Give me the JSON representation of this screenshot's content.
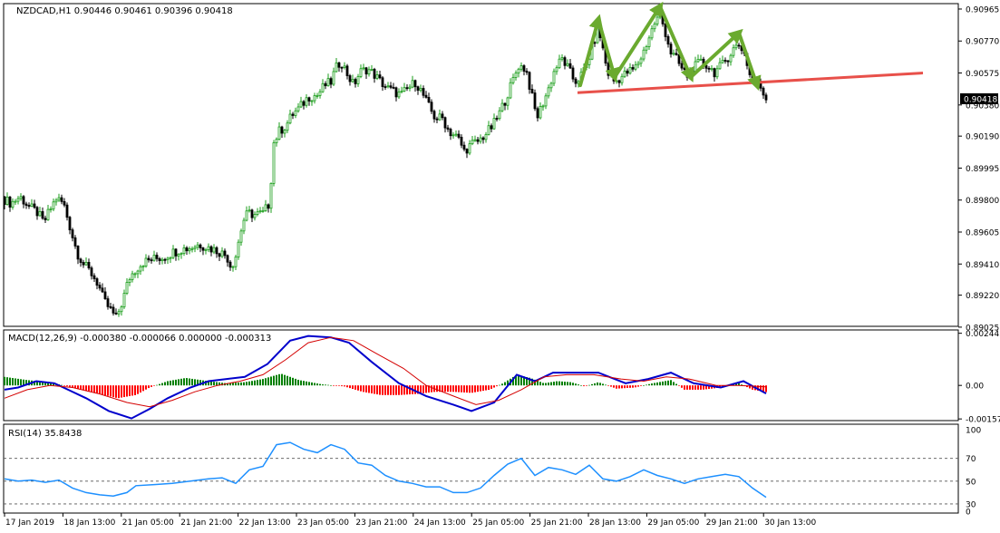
{
  "colors": {
    "bull": "#1b9e1b",
    "bear": "#000000",
    "macd": "#0000cc",
    "signal": "#d40000",
    "hist_pos": "#008000",
    "hist_neg": "#ff0000",
    "rsi": "#1e90ff",
    "neckline": "#e8504a",
    "pattern": "#6aaa2f",
    "frame": "#000000"
  },
  "chart_data": [
    {
      "type": "candlestick",
      "title": "NZDCAD,H1  0.90446 0.90461 0.90396 0.90418",
      "symbol_label": "NZDCAD,H1",
      "ohlc_label": "0.90446 0.90461 0.90396 0.90418",
      "ylim": [
        0.8903,
        0.90998
      ],
      "y_ticks": [
        "0.90965",
        "0.90770",
        "0.90575",
        "0.90380",
        "0.90190",
        "0.89995",
        "0.89800",
        "0.89605",
        "0.89410",
        "0.89220",
        "0.89025"
      ],
      "last_price": "0.90418",
      "x_ticks": [
        "17 Jan 2019",
        "18 Jan 13:00",
        "21 Jan 05:00",
        "21 Jan 21:00",
        "22 Jan 13:00",
        "23 Jan 05:00",
        "23 Jan 21:00",
        "24 Jan 13:00",
        "25 Jan 05:00",
        "25 Jan 21:00",
        "28 Jan 13:00",
        "29 Jan 05:00",
        "29 Jan 21:00",
        "30 Jan 13:00"
      ],
      "close_path": [
        [
          0,
          0.8982
        ],
        [
          12,
          0.8978
        ],
        [
          22,
          0.8982
        ],
        [
          32,
          0.8976
        ],
        [
          42,
          0.8972
        ],
        [
          48,
          0.8966
        ],
        [
          55,
          0.8974
        ],
        [
          62,
          0.8981
        ],
        [
          70,
          0.8978
        ],
        [
          78,
          0.8962
        ],
        [
          85,
          0.8948
        ],
        [
          92,
          0.8941
        ],
        [
          100,
          0.8936
        ],
        [
          108,
          0.8929
        ],
        [
          115,
          0.8918
        ],
        [
          122,
          0.8913
        ],
        [
          128,
          0.8908
        ],
        [
          135,
          0.8918
        ],
        [
          142,
          0.8932
        ],
        [
          150,
          0.8938
        ],
        [
          158,
          0.8942
        ],
        [
          168,
          0.8944
        ],
        [
          180,
          0.8945
        ],
        [
          190,
          0.8948
        ],
        [
          200,
          0.895
        ],
        [
          210,
          0.8951
        ],
        [
          220,
          0.8953
        ],
        [
          230,
          0.8951
        ],
        [
          240,
          0.8949
        ],
        [
          250,
          0.8946
        ],
        [
          255,
          0.8939
        ],
        [
          260,
          0.8946
        ],
        [
          265,
          0.896
        ],
        [
          270,
          0.897
        ],
        [
          275,
          0.8972
        ],
        [
          280,
          0.8971
        ],
        [
          290,
          0.8972
        ],
        [
          297,
          0.8978
        ],
        [
          302,
          0.9015
        ],
        [
          308,
          0.9022
        ],
        [
          315,
          0.9025
        ],
        [
          322,
          0.9032
        ],
        [
          330,
          0.9036
        ],
        [
          340,
          0.9043
        ],
        [
          350,
          0.9044
        ],
        [
          358,
          0.905
        ],
        [
          365,
          0.9052
        ],
        [
          370,
          0.906
        ],
        [
          376,
          0.9065
        ],
        [
          382,
          0.9058
        ],
        [
          390,
          0.905
        ],
        [
          397,
          0.9058
        ],
        [
          405,
          0.906
        ],
        [
          412,
          0.9057
        ],
        [
          420,
          0.9052
        ],
        [
          428,
          0.9048
        ],
        [
          435,
          0.9046
        ],
        [
          442,
          0.9044
        ],
        [
          450,
          0.9048
        ],
        [
          458,
          0.9052
        ],
        [
          465,
          0.9046
        ],
        [
          472,
          0.9038
        ],
        [
          480,
          0.903
        ],
        [
          488,
          0.903
        ],
        [
          495,
          0.9022
        ],
        [
          505,
          0.9018
        ],
        [
          512,
          0.901
        ],
        [
          520,
          0.9014
        ],
        [
          528,
          0.9016
        ],
        [
          535,
          0.902
        ],
        [
          543,
          0.9025
        ],
        [
          550,
          0.9032
        ],
        [
          558,
          0.9042
        ],
        [
          565,
          0.9052
        ],
        [
          572,
          0.9062
        ],
        [
          580,
          0.906
        ],
        [
          586,
          0.9045
        ],
        [
          592,
          0.903
        ],
        [
          598,
          0.9038
        ],
        [
          605,
          0.9048
        ],
        [
          612,
          0.906
        ],
        [
          620,
          0.9066
        ],
        [
          627,
          0.906
        ],
        [
          634,
          0.9052
        ],
        [
          640,
          0.9055
        ],
        [
          647,
          0.9062
        ],
        [
          654,
          0.9075
        ],
        [
          660,
          0.9085
        ],
        [
          665,
          0.9072
        ],
        [
          670,
          0.9058
        ],
        [
          678,
          0.9052
        ],
        [
          685,
          0.9055
        ],
        [
          692,
          0.9058
        ],
        [
          700,
          0.906
        ],
        [
          708,
          0.9068
        ],
        [
          715,
          0.9078
        ],
        [
          722,
          0.9088
        ],
        [
          728,
          0.9093
        ],
        [
          734,
          0.9082
        ],
        [
          740,
          0.907
        ],
        [
          746,
          0.9066
        ],
        [
          752,
          0.906
        ],
        [
          758,
          0.9056
        ],
        [
          764,
          0.906
        ],
        [
          772,
          0.9064
        ],
        [
          780,
          0.9062
        ],
        [
          788,
          0.9058
        ],
        [
          796,
          0.9062
        ],
        [
          804,
          0.9068
        ],
        [
          810,
          0.9073
        ],
        [
          816,
          0.9075
        ],
        [
          822,
          0.9068
        ],
        [
          828,
          0.9054
        ],
        [
          834,
          0.9052
        ],
        [
          840,
          0.9048
        ],
        [
          845,
          0.90418
        ]
      ],
      "neckline": {
        "start": [
          637,
          0.90455
        ],
        "end": [
          1018,
          0.90575
        ]
      },
      "pattern_path": [
        [
          640,
          0.905
        ],
        [
          660,
          0.909
        ],
        [
          678,
          0.9055
        ],
        [
          728,
          0.9098
        ],
        [
          762,
          0.9055
        ],
        [
          815,
          0.9082
        ],
        [
          835,
          0.905
        ]
      ]
    },
    {
      "type": "line",
      "title": "MACD(12,26,9) -0.000380 -0.000066 0.000000 -0.000313",
      "label": "MACD(12,26,9) -0.000380 -0.000066 0.000000 -0.000313",
      "ylim": [
        -0.00165,
        0.0026
      ],
      "y_ticks": [
        "0.002445",
        "0.00",
        "-0.001572"
      ],
      "series": [
        {
          "values": [
            [
              5,
              -0.0002
            ],
            [
              20,
              -0.0001
            ],
            [
              40,
              0.0002
            ],
            [
              60,
              0.0001
            ],
            [
              75,
              -0.0002
            ],
            [
              95,
              -0.0006
            ],
            [
              120,
              -0.0012
            ],
            [
              145,
              -0.00155
            ],
            [
              165,
              -0.0011
            ],
            [
              185,
              -0.0006
            ],
            [
              210,
              -0.0001
            ],
            [
              230,
              0.0002
            ],
            [
              250,
              0.0003
            ],
            [
              270,
              0.0004
            ],
            [
              295,
              0.001
            ],
            [
              320,
              0.0021
            ],
            [
              340,
              0.00232
            ],
            [
              365,
              0.00225
            ],
            [
              385,
              0.002
            ],
            [
              410,
              0.0011
            ],
            [
              440,
              0.0001
            ],
            [
              470,
              -0.0005
            ],
            [
              500,
              -0.0009
            ],
            [
              520,
              -0.0012
            ],
            [
              545,
              -0.0008
            ],
            [
              570,
              0.0005
            ],
            [
              590,
              0.0002
            ],
            [
              610,
              0.0006
            ],
            [
              635,
              0.0006
            ],
            [
              660,
              0.0006
            ],
            [
              690,
              0.0001
            ],
            [
              715,
              0.0003
            ],
            [
              740,
              0.0006
            ],
            [
              765,
              0.0001
            ],
            [
              795,
              -0.0001
            ],
            [
              820,
              0.0002
            ],
            [
              845,
              -0.00038
            ]
          ]
        },
        {
          "values": [
            [
              5,
              -0.0006
            ],
            [
              30,
              -0.0002
            ],
            [
              55,
              0.0
            ],
            [
              80,
              -0.0001
            ],
            [
              110,
              -0.0004
            ],
            [
              140,
              -0.0008
            ],
            [
              165,
              -0.001
            ],
            [
              190,
              -0.0007
            ],
            [
              215,
              -0.0003
            ],
            [
              240,
              0.0
            ],
            [
              265,
              0.0002
            ],
            [
              290,
              0.0005
            ],
            [
              315,
              0.0012
            ],
            [
              340,
              0.002
            ],
            [
              365,
              0.00225
            ],
            [
              390,
              0.0021
            ],
            [
              415,
              0.0015
            ],
            [
              445,
              0.0008
            ],
            [
              470,
              0.0
            ],
            [
              500,
              -0.0005
            ],
            [
              525,
              -0.0009
            ],
            [
              550,
              -0.0007
            ],
            [
              575,
              -0.0002
            ],
            [
              600,
              0.0004
            ],
            [
              625,
              0.0005
            ],
            [
              655,
              0.0005
            ],
            [
              685,
              0.0003
            ],
            [
              710,
              0.0002
            ],
            [
              735,
              0.0004
            ],
            [
              760,
              0.0003
            ],
            [
              790,
              0.0
            ],
            [
              815,
              0.0
            ],
            [
              845,
              -6.6e-05
            ]
          ]
        }
      ],
      "histogram": [
        [
          5,
          0.0004
        ],
        [
          30,
          0.00025
        ],
        [
          55,
          0.00015
        ],
        [
          80,
          -0.0001
        ],
        [
          110,
          -0.0004
        ],
        [
          130,
          -0.0006
        ],
        [
          150,
          -0.00045
        ],
        [
          165,
          -0.0001
        ],
        [
          185,
          0.0002
        ],
        [
          205,
          0.00035
        ],
        [
          230,
          0.0002
        ],
        [
          250,
          0.0001
        ],
        [
          270,
          0.00015
        ],
        [
          290,
          0.0003
        ],
        [
          310,
          0.00055
        ],
        [
          330,
          0.00025
        ],
        [
          355,
          5e-05
        ],
        [
          380,
          -5e-05
        ],
        [
          400,
          -0.0003
        ],
        [
          420,
          -0.00045
        ],
        [
          440,
          -0.00045
        ],
        [
          460,
          -0.0004
        ],
        [
          480,
          -0.0003
        ],
        [
          500,
          -0.0003
        ],
        [
          520,
          -0.00035
        ],
        [
          540,
          -0.0002
        ],
        [
          555,
          0.0001
        ],
        [
          570,
          0.0005
        ],
        [
          585,
          0.00035
        ],
        [
          600,
          0.0001
        ],
        [
          615,
          0.0002
        ],
        [
          630,
          0.00015
        ],
        [
          645,
          -5e-05
        ],
        [
          660,
          0.00015
        ],
        [
          680,
          -0.00015
        ],
        [
          700,
          -0.0001
        ],
        [
          720,
          0.0001
        ],
        [
          740,
          0.00025
        ],
        [
          755,
          -0.0002
        ],
        [
          775,
          -0.0002
        ],
        [
          795,
          -0.0001
        ],
        [
          815,
          0.0001
        ],
        [
          830,
          -0.0002
        ],
        [
          845,
          -0.000313
        ]
      ]
    },
    {
      "type": "line",
      "title": "RSI(14) 35.8438",
      "label": "RSI(14) 35.8438",
      "ylim": [
        22,
        100
      ],
      "y_ticks": [
        "100",
        "70",
        "50",
        "30",
        "0"
      ],
      "levels": [
        70,
        50,
        30
      ],
      "series": [
        {
          "values": [
            [
              5,
              52
            ],
            [
              20,
              50
            ],
            [
              35,
              51
            ],
            [
              50,
              49
            ],
            [
              65,
              51
            ],
            [
              80,
              44
            ],
            [
              95,
              40
            ],
            [
              110,
              38
            ],
            [
              125,
              37
            ],
            [
              140,
              40
            ],
            [
              150,
              46
            ],
            [
              170,
              47
            ],
            [
              190,
              48
            ],
            [
              210,
              50
            ],
            [
              230,
              52
            ],
            [
              245,
              53
            ],
            [
              260,
              48
            ],
            [
              275,
              60
            ],
            [
              290,
              63
            ],
            [
              305,
              82
            ],
            [
              320,
              84
            ],
            [
              335,
              78
            ],
            [
              350,
              75
            ],
            [
              365,
              82
            ],
            [
              380,
              78
            ],
            [
              395,
              66
            ],
            [
              410,
              64
            ],
            [
              425,
              55
            ],
            [
              440,
              50
            ],
            [
              455,
              48
            ],
            [
              470,
              45
            ],
            [
              485,
              45
            ],
            [
              500,
              40
            ],
            [
              515,
              40
            ],
            [
              530,
              44
            ],
            [
              545,
              55
            ],
            [
              560,
              65
            ],
            [
              575,
              70
            ],
            [
              590,
              55
            ],
            [
              605,
              62
            ],
            [
              620,
              60
            ],
            [
              635,
              56
            ],
            [
              650,
              64
            ],
            [
              665,
              52
            ],
            [
              680,
              50
            ],
            [
              695,
              54
            ],
            [
              710,
              60
            ],
            [
              725,
              55
            ],
            [
              740,
              52
            ],
            [
              755,
              48
            ],
            [
              770,
              52
            ],
            [
              785,
              54
            ],
            [
              800,
              56
            ],
            [
              815,
              54
            ],
            [
              830,
              44
            ],
            [
              845,
              35.8438
            ]
          ]
        }
      ]
    }
  ]
}
